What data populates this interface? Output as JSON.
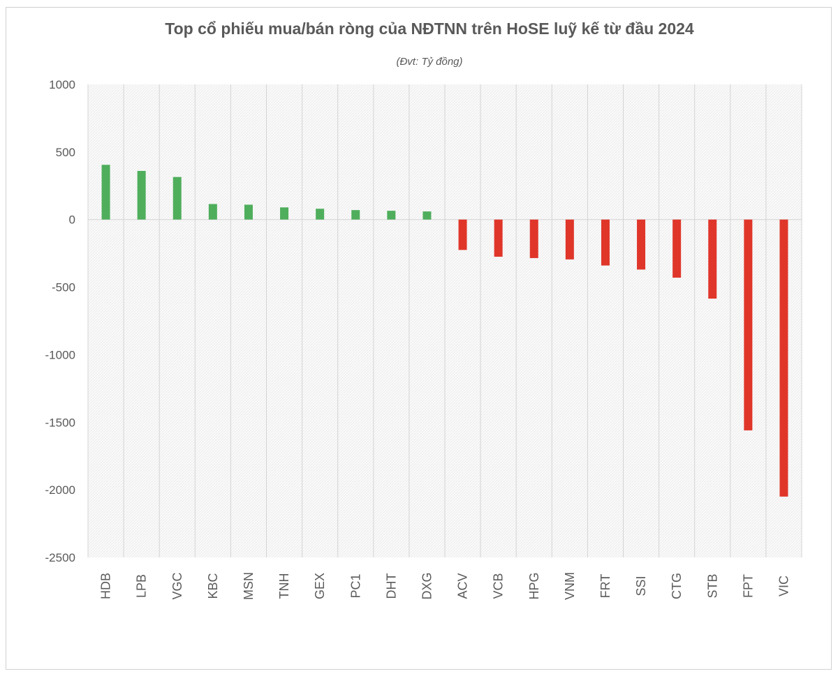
{
  "chart_data": {
    "type": "bar",
    "title": "Top cổ phiếu mua/bán ròng của NĐTNN trên HoSE luỹ kế từ đầu 2024",
    "subtitle": "(Đvt: Tỷ đồng)",
    "xlabel": "",
    "ylabel": "",
    "ylim": [
      -2500,
      1000
    ],
    "yticks": [
      1000,
      500,
      0,
      -500,
      -1000,
      -1500,
      -2000,
      -2500
    ],
    "grid": "vertical",
    "categories": [
      "HDB",
      "LPB",
      "VGC",
      "KBC",
      "MSN",
      "TNH",
      "GEX",
      "PC1",
      "DHT",
      "DXG",
      "ACV",
      "VCB",
      "HPG",
      "VNM",
      "FRT",
      "SSI",
      "CTG",
      "STB",
      "FPT",
      "VIC"
    ],
    "values": [
      405,
      360,
      315,
      115,
      110,
      90,
      80,
      70,
      65,
      60,
      -225,
      -275,
      -285,
      -295,
      -340,
      -370,
      -430,
      -585,
      -1560,
      -2050
    ],
    "colors": {
      "positive": "#4fae5c",
      "negative": "#e0362a"
    }
  }
}
